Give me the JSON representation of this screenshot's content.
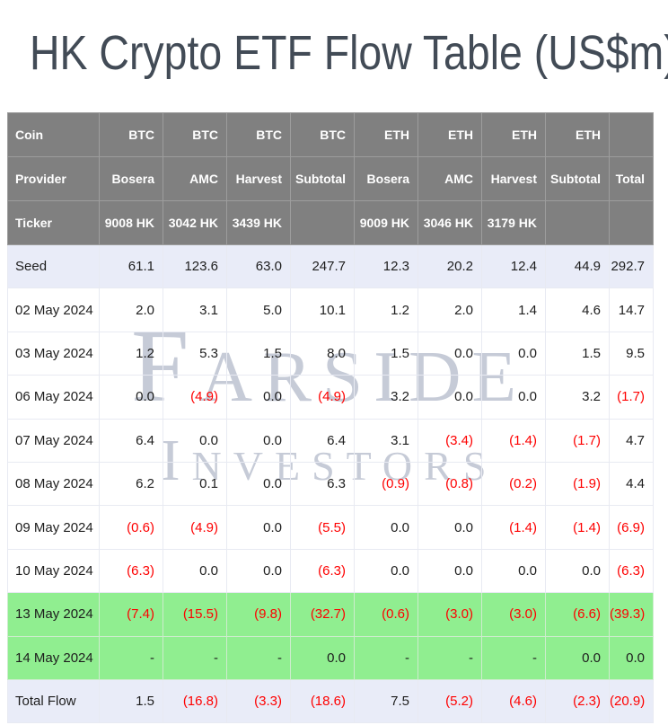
{
  "page": {
    "title": "HK Crypto ETF Flow Table (US$m)"
  },
  "watermark": {
    "line1": "Farside",
    "line2": "Investors"
  },
  "colors": {
    "title_text": "#424b56",
    "header_bg": "#808080",
    "header_text": "#ffffff",
    "header_border": "#9d9d9d",
    "body_border": "#e8eaf2",
    "subtotal_bg": "#e9ecf8",
    "green_bg": "#90ee90",
    "negative": "#fe0000",
    "text": "#1d1d1d",
    "watermark_text": "#c6cbd7"
  },
  "chart_data": {
    "type": "table",
    "title": "HK Crypto ETF Flow Table (US$m)",
    "header_rows": [
      {
        "label": "Coin",
        "cells": [
          "BTC",
          "BTC",
          "BTC",
          "BTC",
          "ETH",
          "ETH",
          "ETH",
          "ETH",
          ""
        ]
      },
      {
        "label": "Provider",
        "cells": [
          "Bosera",
          "AMC",
          "Harvest",
          "Subtotal",
          "Bosera",
          "AMC",
          "Harvest",
          "Subtotal",
          "Total"
        ]
      },
      {
        "label": "Ticker",
        "cells": [
          "9008 HK",
          "3042 HK",
          "3439 HK",
          "",
          "9009 HK",
          "3046 HK",
          "3179 HK",
          "",
          ""
        ]
      }
    ],
    "rows": [
      {
        "label": "Seed",
        "highlight": "subtotal",
        "cells": [
          "61.1",
          "123.6",
          "63.0",
          "247.7",
          "12.3",
          "20.2",
          "12.4",
          "44.9",
          "292.7"
        ]
      },
      {
        "label": "02 May 2024",
        "highlight": "none",
        "cells": [
          "2.0",
          "3.1",
          "5.0",
          "10.1",
          "1.2",
          "2.0",
          "1.4",
          "4.6",
          "14.7"
        ]
      },
      {
        "label": "03 May 2024",
        "highlight": "none",
        "cells": [
          "1.2",
          "5.3",
          "1.5",
          "8.0",
          "1.5",
          "0.0",
          "0.0",
          "1.5",
          "9.5"
        ]
      },
      {
        "label": "06 May 2024",
        "highlight": "none",
        "cells": [
          "0.0",
          "(4.9)",
          "0.0",
          "(4.9)",
          "3.2",
          "0.0",
          "0.0",
          "3.2",
          "(1.7)"
        ]
      },
      {
        "label": "07 May 2024",
        "highlight": "none",
        "cells": [
          "6.4",
          "0.0",
          "0.0",
          "6.4",
          "3.1",
          "(3.4)",
          "(1.4)",
          "(1.7)",
          "4.7"
        ]
      },
      {
        "label": "08 May 2024",
        "highlight": "none",
        "cells": [
          "6.2",
          "0.1",
          "0.0",
          "6.3",
          "(0.9)",
          "(0.8)",
          "(0.2)",
          "(1.9)",
          "4.4"
        ]
      },
      {
        "label": "09 May 2024",
        "highlight": "none",
        "cells": [
          "(0.6)",
          "(4.9)",
          "0.0",
          "(5.5)",
          "0.0",
          "0.0",
          "(1.4)",
          "(1.4)",
          "(6.9)"
        ]
      },
      {
        "label": "10 May 2024",
        "highlight": "none",
        "cells": [
          "(6.3)",
          "0.0",
          "0.0",
          "(6.3)",
          "0.0",
          "0.0",
          "0.0",
          "0.0",
          "(6.3)"
        ]
      },
      {
        "label": "13 May 2024",
        "highlight": "green",
        "cells": [
          "(7.4)",
          "(15.5)",
          "(9.8)",
          "(32.7)",
          "(0.6)",
          "(3.0)",
          "(3.0)",
          "(6.6)",
          "(39.3)"
        ]
      },
      {
        "label": "14 May 2024",
        "highlight": "green",
        "cells": [
          "-",
          "-",
          "-",
          "0.0",
          "-",
          "-",
          "-",
          "0.0",
          "0.0"
        ]
      },
      {
        "label": "Total Flow",
        "highlight": "subtotal",
        "cells": [
          "1.5",
          "(16.8)",
          "(3.3)",
          "(18.6)",
          "7.5",
          "(5.2)",
          "(4.6)",
          "(2.3)",
          "(20.9)"
        ]
      }
    ]
  }
}
